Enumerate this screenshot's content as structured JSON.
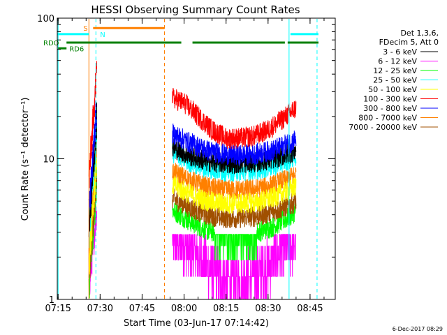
{
  "chart_data": {
    "type": "line",
    "title": "HESSI Observing Summary Count Rates",
    "xlabel": "Start Time (03-Jun-17 07:14:42)",
    "ylabel": "Count Rate (s⁻¹ detector⁻¹)",
    "x_scale": "time",
    "y_scale": "log",
    "xlim": [
      "07:14:42",
      "08:54:00"
    ],
    "ylim": [
      1,
      100
    ],
    "x_ticks": [
      "07:15",
      "07:30",
      "07:45",
      "08:00",
      "08:15",
      "08:30",
      "08:45"
    ],
    "y_ticks": [
      "1",
      "10",
      "100"
    ],
    "grid": false,
    "legend": {
      "placement": "right",
      "header": [
        "Det 1,3,6,",
        "FDecim 5, Att 0"
      ],
      "entries": [
        {
          "label": "3 - 6 keV",
          "color": "#000000"
        },
        {
          "label": "6 - 12 keV",
          "color": "#ff00ff"
        },
        {
          "label": "12 - 25 keV",
          "color": "#00ff00"
        },
        {
          "label": "25 - 50 keV",
          "color": "#00ffff"
        },
        {
          "label": "50 - 100 keV",
          "color": "#ffff00"
        },
        {
          "label": "100 - 300 keV",
          "color": "#ff0000"
        },
        {
          "label": "300 - 800 keV",
          "color": "#0000ff"
        },
        {
          "label": "800 - 7000 keV",
          "color": "#ff8000"
        },
        {
          "label": "7000 - 20000 keV",
          "color": "#a05000"
        }
      ]
    },
    "data_segments": [
      {
        "start": "07:26:00",
        "end": "07:28:50",
        "ramp": true
      },
      {
        "start": "07:55:50",
        "end": "08:40:00",
        "ramp": false
      }
    ],
    "series": [
      {
        "name": "3 - 6 keV",
        "color": "#000000",
        "x": [
          "07:56",
          "08:02",
          "08:08",
          "08:14",
          "08:20",
          "08:26",
          "08:32",
          "08:38",
          "08:40"
        ],
        "values": [
          12,
          10.5,
          9.6,
          9.3,
          9.3,
          9.5,
          10,
          11,
          11.5
        ]
      },
      {
        "name": "6 - 12 keV",
        "color": "#ff00ff",
        "x": [
          "07:56",
          "08:00",
          "08:05",
          "08:10",
          "08:15",
          "08:20",
          "08:25",
          "08:30",
          "08:35",
          "08:40"
        ],
        "values": [
          2.8,
          2.4,
          2.1,
          1.6,
          1.4,
          1.4,
          1.5,
          1.8,
          2.3,
          2.6
        ]
      },
      {
        "name": "12 - 25 keV",
        "color": "#00ff00",
        "x": [
          "07:56",
          "08:02",
          "08:08",
          "08:14",
          "08:20",
          "08:26",
          "08:32",
          "08:38",
          "08:40"
        ],
        "values": [
          4.3,
          3.6,
          3.1,
          2.9,
          2.9,
          3.0,
          3.3,
          3.9,
          4.3
        ]
      },
      {
        "name": "25 - 50 keV",
        "color": "#00ffff",
        "x": [
          "07:56",
          "08:02",
          "08:08",
          "08:14",
          "08:20",
          "08:26",
          "08:32",
          "08:38",
          "08:40"
        ],
        "values": [
          11,
          9.5,
          8.6,
          8.2,
          8.2,
          8.4,
          8.9,
          10,
          10.5
        ]
      },
      {
        "name": "50 - 100 keV",
        "color": "#ffff00",
        "x": [
          "07:56",
          "08:02",
          "08:08",
          "08:14",
          "08:20",
          "08:26",
          "08:32",
          "08:38",
          "08:40"
        ],
        "values": [
          6.5,
          5.6,
          5.0,
          4.8,
          4.8,
          4.9,
          5.3,
          6.0,
          6.4
        ]
      },
      {
        "name": "100 - 300 keV",
        "color": "#ff0000",
        "x": [
          "07:56",
          "08:00",
          "08:05",
          "08:10",
          "08:15",
          "08:20",
          "08:25",
          "08:30",
          "08:35",
          "08:40"
        ],
        "values": [
          27,
          25,
          20,
          16,
          14,
          14,
          14.5,
          16,
          19,
          23
        ]
      },
      {
        "name": "300 - 800 keV",
        "color": "#0000ff",
        "x": [
          "07:56",
          "08:02",
          "08:08",
          "08:14",
          "08:20",
          "08:26",
          "08:32",
          "08:38",
          "08:40"
        ],
        "values": [
          15,
          13,
          11.5,
          10.8,
          10.6,
          10.8,
          11.5,
          13,
          14
        ]
      },
      {
        "name": "800 - 7000 keV",
        "color": "#ff8000",
        "x": [
          "07:56",
          "08:02",
          "08:08",
          "08:14",
          "08:20",
          "08:26",
          "08:32",
          "08:38",
          "08:40"
        ],
        "values": [
          8,
          7,
          6.3,
          6.0,
          6.0,
          6.1,
          6.5,
          7.3,
          7.8
        ]
      },
      {
        "name": "7000 - 20000 keV",
        "color": "#a05000",
        "x": [
          "07:56",
          "08:02",
          "08:08",
          "08:14",
          "08:20",
          "08:26",
          "08:32",
          "08:38",
          "08:40"
        ],
        "values": [
          5.2,
          4.5,
          4.0,
          3.8,
          3.8,
          3.9,
          4.2,
          4.7,
          5.0
        ]
      }
    ],
    "flags": [
      {
        "label": "S",
        "color": "#ff8000",
        "segments": [
          [
            "07:27:30",
            "07:53:00"
          ]
        ],
        "shown_level": 85
      },
      {
        "label": "N",
        "color": "#00ffff",
        "segments": [
          [
            "07:14:42",
            "07:26:00"
          ],
          [
            "08:38:00",
            "08:48:00"
          ]
        ],
        "shown_level": 77
      },
      {
        "label": "RDO",
        "color": "#008000",
        "segments": [
          [
            "07:18:00",
            "07:53:00"
          ],
          [
            "07:53:00",
            "07:59:00"
          ],
          [
            "08:03:00",
            "08:36:00"
          ],
          [
            "08:37:00",
            "08:48:00"
          ]
        ],
        "shown_level": 67
      },
      {
        "label": "RD6",
        "color": "#008000",
        "segments": [
          [
            "07:15:00",
            "07:18:00"
          ]
        ],
        "shown_level": 61
      }
    ],
    "markers": [
      {
        "time": "07:15:00",
        "color": "#00ffff",
        "style": "solid"
      },
      {
        "time": "07:26:00",
        "color": "#ff8000",
        "style": "solid"
      },
      {
        "time": "07:28:30",
        "color": "#00ffff",
        "style": "dashed"
      },
      {
        "time": "07:53:00",
        "color": "#ff8000",
        "style": "dashed"
      },
      {
        "time": "08:37:30",
        "color": "#00ffff",
        "style": "solid"
      },
      {
        "time": "08:47:30",
        "color": "#00ffff",
        "style": "dashed"
      }
    ]
  },
  "footer": {
    "timestamp": "6-Dec-2017 08:29"
  }
}
